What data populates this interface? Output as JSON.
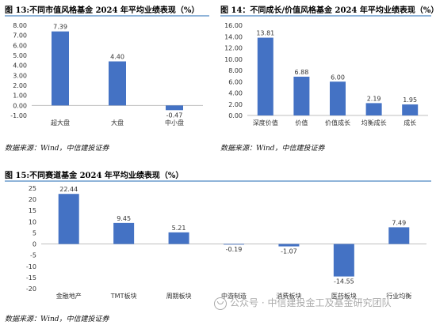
{
  "figures": [
    {
      "title": "图 13:不同市值风格基金 2024 年平均业绩表现（%）",
      "source": "数据来源：Wind，中信建投证券"
    },
    {
      "title": "图 14：不同成长/价值风格基金 2024 年平均业绩表现（%）",
      "source": "数据来源：Wind，中信建投证券"
    },
    {
      "title": "图 15:不同赛道基金 2024 年平均业绩表现（%）",
      "source": "数据来源：Wind，中信建投证券"
    }
  ],
  "watermark": {
    "text": "公众号 · 中信建投金工及基金研究团队"
  },
  "colors": {
    "bar": "#4472c4",
    "rule": "#8fb4d9"
  },
  "chart_data": [
    {
      "type": "bar",
      "categories": [
        "超大盘",
        "大盘",
        "中小盘"
      ],
      "values": [
        7.39,
        4.4,
        -0.47
      ],
      "labels": [
        "7.39",
        "4.40",
        "-0.47"
      ],
      "ylim": [
        -1.0,
        8.0
      ],
      "yticks": [
        "8.00",
        "7.00",
        "6.00",
        "5.00",
        "4.00",
        "3.00",
        "2.00",
        "1.00",
        "0.00",
        "-1.00"
      ],
      "grid": false
    },
    {
      "type": "bar",
      "categories": [
        "深度价值",
        "价值",
        "价值成长",
        "均衡成长",
        "成长"
      ],
      "values": [
        13.81,
        6.88,
        6.0,
        2.19,
        1.95
      ],
      "labels": [
        "13.81",
        "6.88",
        "6.00",
        "2.19",
        "1.95"
      ],
      "ylim": [
        0.0,
        16.0
      ],
      "yticks": [
        "16.00",
        "14.00",
        "12.00",
        "10.00",
        "8.00",
        "6.00",
        "4.00",
        "2.00",
        "0.00"
      ],
      "grid": false
    },
    {
      "type": "bar",
      "categories": [
        "金融地产",
        "TMT板块",
        "周期板块",
        "中游制造",
        "消费板块",
        "医药板块",
        "行业均衡"
      ],
      "values": [
        22.44,
        9.45,
        5.21,
        -0.19,
        -1.07,
        -14.55,
        7.49
      ],
      "labels": [
        "22.44",
        "9.45",
        "5.21",
        "-0.19",
        "-1.07",
        "-14.55",
        "7.49"
      ],
      "ylim": [
        -20,
        25
      ],
      "yticks": [
        "25",
        "20",
        "15",
        "10",
        "5",
        "0",
        "-5",
        "-10",
        "-15",
        "-20"
      ],
      "grid": false
    }
  ]
}
